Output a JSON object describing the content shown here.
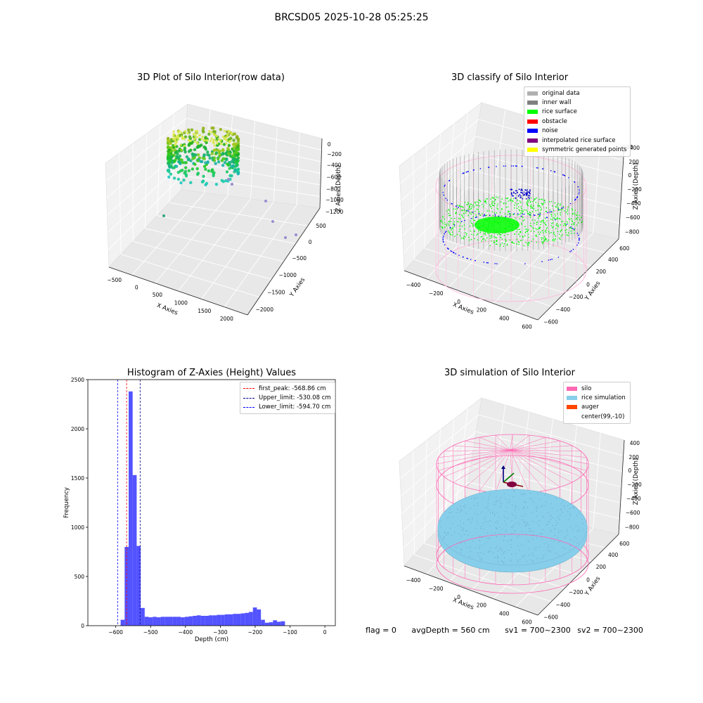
{
  "suptitle": "BRCSD05 2025-10-28 05:25:25",
  "colors": {
    "original": "#b0b0b0",
    "inner_wall": "#808080",
    "rice_surface": "#00ff00",
    "obstacle": "#ff0000",
    "noise": "#0000ff",
    "interp_surface": "#800080",
    "symmetric": "#ffff00",
    "silo": "#ff69b4",
    "rice_sim": "#87ceeb",
    "auger": "#ff4500",
    "hist_bar": "#4a4aff"
  },
  "plot1": {
    "title": "3D Plot of Silo Interior(row data)",
    "xlabel": "X Axies",
    "ylabel": "Y Axies",
    "zlabel": "Z Axies (Depth)",
    "x_ticks": [
      "−500",
      "0",
      "500",
      "1000",
      "1500",
      "2000"
    ],
    "y_ticks": [
      "500",
      "0",
      "−500",
      "−1000",
      "−1500",
      "−2000"
    ],
    "z_ticks": [
      "0",
      "−200",
      "−400",
      "−600",
      "−800",
      "−1000",
      "−1200"
    ]
  },
  "plot2": {
    "title": "3D classify of Silo Interior",
    "xlabel": "X Axies",
    "ylabel": "Y Axies",
    "zlabel": "Z Axies (Depth)",
    "x_ticks": [
      "−400",
      "−200",
      "0",
      "200",
      "400",
      "600"
    ],
    "y_ticks": [
      "600",
      "400",
      "200",
      "0",
      "−200",
      "−400",
      "−600"
    ],
    "z_ticks": [
      "400",
      "200",
      "0",
      "−200",
      "−400",
      "−600",
      "−800"
    ],
    "z_tick_partial": "00",
    "legend": [
      {
        "label": "original data",
        "color": "#b0b0b0"
      },
      {
        "label": "inner wall",
        "color": "#808080"
      },
      {
        "label": "rice surface",
        "color": "#00ff00"
      },
      {
        "label": "obstacle",
        "color": "#ff0000"
      },
      {
        "label": "noise",
        "color": "#0000ff"
      },
      {
        "label": "interpolated rice surface",
        "color": "#800080"
      },
      {
        "label": "symmetric generated points",
        "color": "#ffff00"
      }
    ]
  },
  "plot4": {
    "title": "3D simulation of Silo Interior",
    "xlabel": "X Axies",
    "ylabel": "Y Axies",
    "zlabel": "Z Axies (Depth)",
    "x_ticks": [
      "−400",
      "−200",
      "0",
      "200",
      "400",
      "600"
    ],
    "y_ticks": [
      "600",
      "400",
      "200",
      "0",
      "−200",
      "−400",
      "−600"
    ],
    "z_ticks": [
      "400",
      "200",
      "0",
      "−200",
      "−400",
      "−600",
      "−800"
    ],
    "legend": [
      {
        "label": "silo",
        "color": "#ff69b4"
      },
      {
        "label": "rice simulation",
        "color": "#87ceeb"
      },
      {
        "label": "auger",
        "color": "#ff4500"
      },
      {
        "label": "center(99,-10)",
        "color": "#ffffff"
      }
    ]
  },
  "footer": {
    "flag": "flag = 0",
    "avg": "avgDepth = 560 cm",
    "sv1": "sv1 = 700~2300",
    "sv2": "sv2 = 700~2300"
  },
  "chart_data": [
    {
      "type": "histogram",
      "title": "Histogram of Z-Axies (Height) Values",
      "xlabel": "Depth (cm)",
      "ylabel": "Frequency",
      "xlim": [
        -680,
        30
      ],
      "ylim": [
        0,
        2500
      ],
      "x_ticks": [
        -600,
        -500,
        -400,
        -300,
        -200,
        -100,
        0
      ],
      "y_ticks": [
        0,
        500,
        1000,
        1500,
        2000,
        2500
      ],
      "grid": false,
      "legend_position": "upper right",
      "bins_start": -586,
      "bin_width": 11.5,
      "counts": [
        60,
        800,
        2380,
        1530,
        810,
        180,
        90,
        85,
        90,
        85,
        90,
        90,
        90,
        90,
        90,
        85,
        90,
        95,
        100,
        105,
        100,
        100,
        105,
        105,
        110,
        110,
        115,
        115,
        120,
        120,
        125,
        130,
        140,
        185,
        165,
        60,
        30,
        35,
        55,
        40,
        45
      ],
      "lines": [
        {
          "label": "first_peak: -568.86 cm",
          "value": -568.86,
          "color": "#ff0000"
        },
        {
          "label": "Upper_limit: -530.08 cm",
          "value": -530.08,
          "color": "#00008b"
        },
        {
          "label": "Lower_limit: -594.70 cm",
          "value": -594.7,
          "color": "#0000ff"
        }
      ]
    }
  ]
}
